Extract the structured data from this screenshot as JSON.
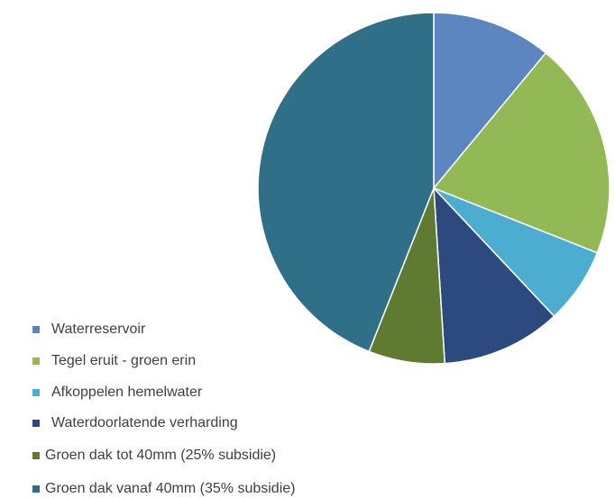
{
  "chart_data": {
    "type": "pie",
    "categories": [
      "Waterreservoir",
      "Tegel eruit - groen erin",
      "Afkoppelen hemelwater",
      "Waterdoorlatende verharding",
      "Groen dak tot 40mm (25% subsidie)",
      "Groen dak vanaf 40mm (35% subsidie)"
    ],
    "values": [
      11,
      20,
      7,
      11,
      7,
      44
    ],
    "colors": [
      "#5b86c0",
      "#92b956",
      "#4dadd0",
      "#2c4a7e",
      "#5f7a31",
      "#2f6f88"
    ]
  }
}
